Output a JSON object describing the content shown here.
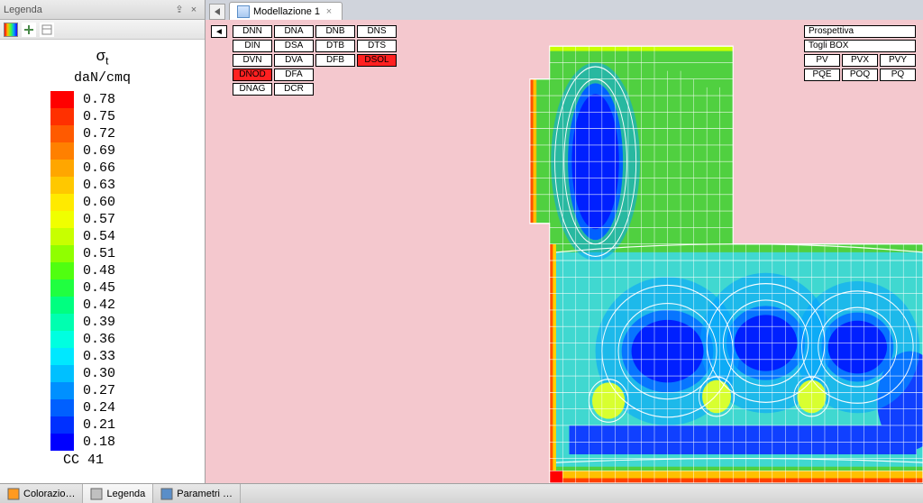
{
  "leftPanel": {
    "title": "Legenda",
    "pinGlyph": "⇪",
    "closeGlyph": "×"
  },
  "legend": {
    "symbol": "σ",
    "subscript": "t",
    "unit": "daN/cmq",
    "footer": "CC 41",
    "scale": [
      {
        "v": "0.78",
        "c": "#ff0000"
      },
      {
        "v": "0.75",
        "c": "#ff3000"
      },
      {
        "v": "0.72",
        "c": "#ff5a00"
      },
      {
        "v": "0.69",
        "c": "#ff8000"
      },
      {
        "v": "0.66",
        "c": "#ffa600"
      },
      {
        "v": "0.63",
        "c": "#ffc800"
      },
      {
        "v": "0.60",
        "c": "#ffea00"
      },
      {
        "v": "0.57",
        "c": "#f0ff00"
      },
      {
        "v": "0.54",
        "c": "#c8ff00"
      },
      {
        "v": "0.51",
        "c": "#90ff00"
      },
      {
        "v": "0.48",
        "c": "#50ff10"
      },
      {
        "v": "0.45",
        "c": "#20ff40"
      },
      {
        "v": "0.42",
        "c": "#00ff80"
      },
      {
        "v": "0.39",
        "c": "#00ffb0"
      },
      {
        "v": "0.36",
        "c": "#00ffe0"
      },
      {
        "v": "0.33",
        "c": "#00e8ff"
      },
      {
        "v": "0.30",
        "c": "#00c0ff"
      },
      {
        "v": "0.27",
        "c": "#0090ff"
      },
      {
        "v": "0.24",
        "c": "#0060ff"
      },
      {
        "v": "0.21",
        "c": "#0030ff"
      },
      {
        "v": "0.18",
        "c": "#0000ff"
      }
    ]
  },
  "tab": {
    "label": "Modellazione 1",
    "closeGlyph": "×"
  },
  "backGlyph": "◄",
  "leftButtons": [
    {
      "t": "DNN",
      "sel": false
    },
    {
      "t": "DNA",
      "sel": false
    },
    {
      "t": "DNB",
      "sel": false
    },
    {
      "t": "DNS",
      "sel": false
    },
    {
      "t": "DIN",
      "sel": false
    },
    {
      "t": "DSA",
      "sel": false
    },
    {
      "t": "DTB",
      "sel": false
    },
    {
      "t": "DTS",
      "sel": false
    },
    {
      "t": "DVN",
      "sel": false
    },
    {
      "t": "DVA",
      "sel": false
    },
    {
      "t": "DFB",
      "sel": false
    },
    {
      "t": "DSOL",
      "sel": true
    },
    {
      "t": "DNOD",
      "sel": true
    },
    {
      "t": "DFA",
      "sel": false
    },
    {
      "t": "",
      "sel": false,
      "empty": true
    },
    {
      "t": "",
      "sel": false,
      "empty": true
    },
    {
      "t": "DNAG",
      "sel": false
    },
    {
      "t": "DCR",
      "sel": false
    },
    {
      "t": "",
      "sel": false,
      "empty": true
    },
    {
      "t": "",
      "sel": false,
      "empty": true
    }
  ],
  "rightButtons": [
    {
      "t": "Prospettiva",
      "wide": true
    },
    {
      "t": "Togli BOX",
      "wide": true
    },
    {
      "t": "PV"
    },
    {
      "t": "PVX"
    },
    {
      "t": "PVY"
    },
    {
      "t": "PQE"
    },
    {
      "t": "POQ"
    },
    {
      "t": "PQ"
    }
  ],
  "statusTabs": [
    {
      "label": "Colorazio…",
      "iconFill": "#ff9a20",
      "active": false
    },
    {
      "label": "Legenda",
      "iconFill": "#c0c0c0",
      "active": true
    },
    {
      "label": "Parametri …",
      "iconFill": "#5a8ec8",
      "active": false
    }
  ],
  "contour": {
    "bg": "#f4c8ce",
    "meshStroke": "#ffffff",
    "contourStroke": "#ffffff"
  }
}
